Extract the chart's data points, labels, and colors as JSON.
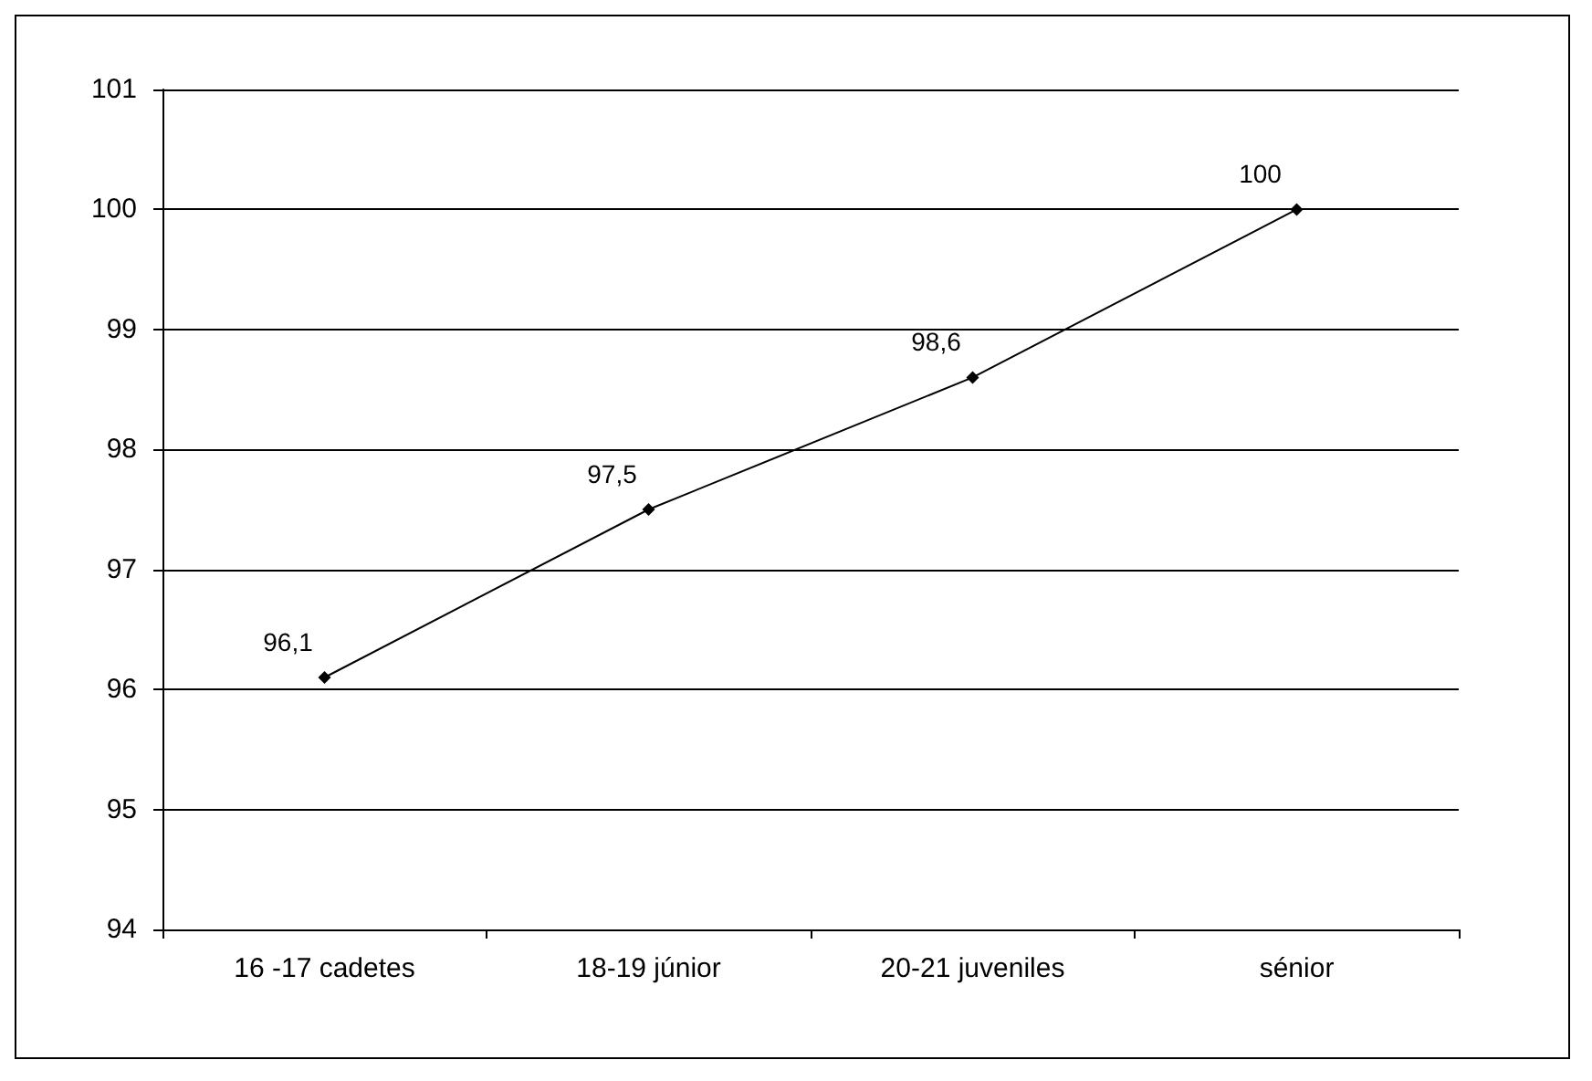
{
  "chart_data": {
    "type": "line",
    "categories": [
      "16 -17 cadetes",
      "18-19 júnior",
      "20-21 juveniles",
      "sénior"
    ],
    "series": [
      {
        "color": "#000000",
        "values": [
          96.1,
          97.5,
          98.6,
          100
        ],
        "value_labels": [
          "96,1",
          "97,5",
          "98,6",
          "100"
        ]
      }
    ],
    "ylim": [
      94,
      101
    ],
    "yticks": [
      94,
      95,
      96,
      97,
      98,
      99,
      100,
      101
    ],
    "grid": "y",
    "marker": "diamond",
    "line_style": "solid"
  }
}
